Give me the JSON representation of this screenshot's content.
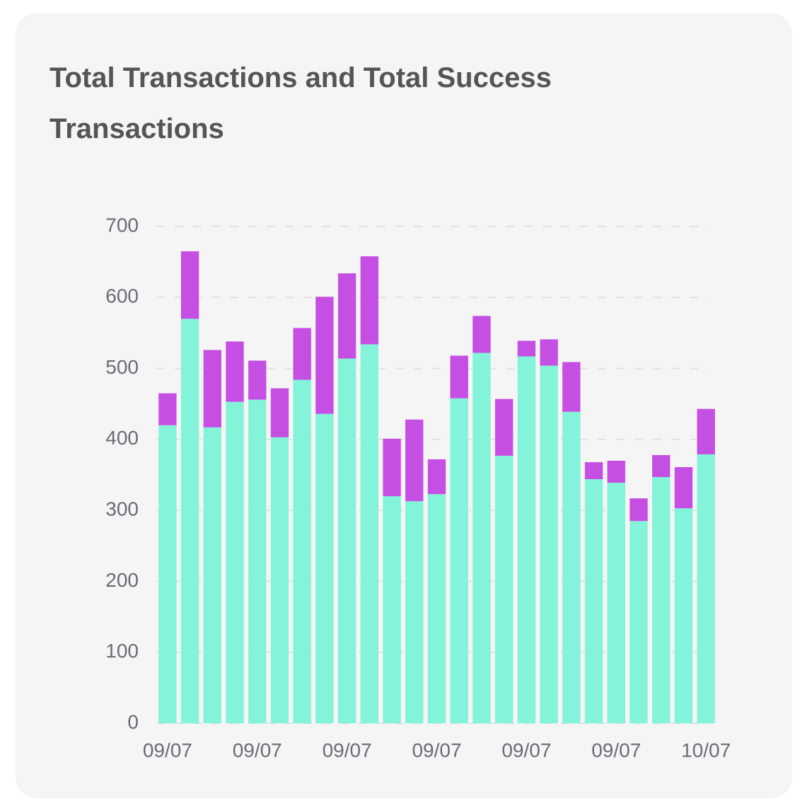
{
  "chart_data": {
    "type": "stacked_bar",
    "title": "Total Transactions and Total Success Transactions",
    "categories": [
      "09/07",
      null,
      null,
      null,
      "09/07",
      null,
      null,
      null,
      "09/07",
      null,
      null,
      null,
      "09/07",
      null,
      null,
      null,
      "09/07",
      null,
      null,
      null,
      "09/07",
      null,
      null,
      null,
      "10/07"
    ],
    "series": [
      {
        "color": "#83f3da",
        "values": [
          420,
          570,
          417,
          453,
          456,
          403,
          484,
          436,
          514,
          534,
          320,
          313,
          323,
          458,
          522,
          377,
          517,
          504,
          439,
          344,
          339,
          285,
          347,
          303,
          379
        ]
      },
      {
        "color": "#c64fe3",
        "values": [
          45,
          95,
          109,
          85,
          55,
          69,
          73,
          165,
          120,
          124,
          81,
          115,
          49,
          60,
          52,
          80,
          22,
          37,
          70,
          24,
          31,
          32,
          31,
          58,
          64
        ]
      }
    ],
    "ylim": [
      0,
      700
    ],
    "yticks": [
      0,
      100,
      200,
      300,
      400,
      500,
      600,
      700
    ],
    "grid": true
  }
}
